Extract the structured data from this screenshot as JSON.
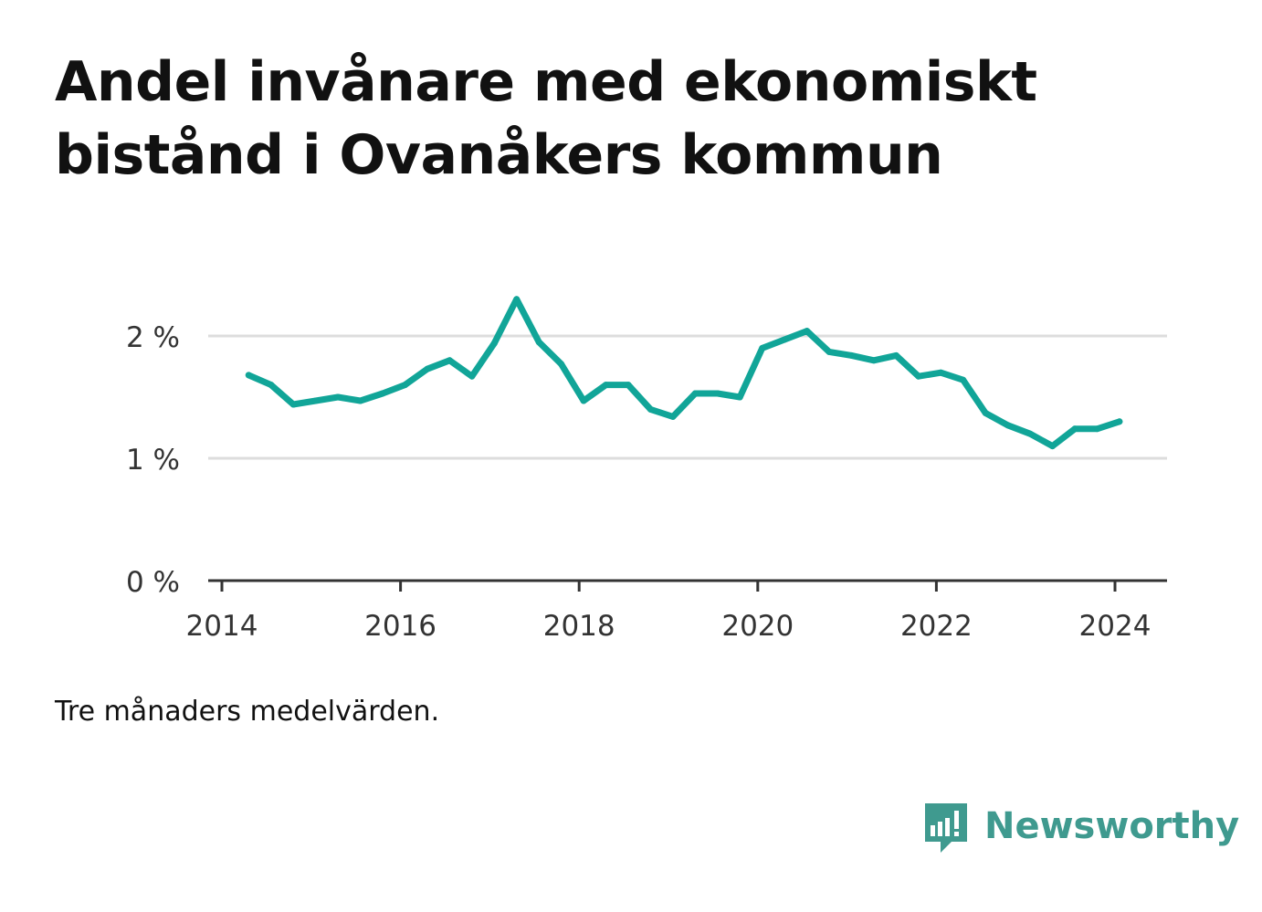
{
  "title": "Andel invånare med ekonomiskt bistånd i Ovanåkers kommun",
  "note": "Tre månaders medelvärden.",
  "brand": {
    "name": "Newsworthy",
    "color": "#3f9a8f",
    "icon": "bar-chart-logo-icon"
  },
  "chart_data": {
    "type": "line",
    "title": "Andel invånare med ekonomiskt bistånd i Ovanåkers kommun",
    "xlabel": "",
    "ylabel": "",
    "ylim": [
      0,
      2.5
    ],
    "xlim": [
      2014.0,
      2024.6
    ],
    "y_ticks": [
      {
        "value": 0,
        "label": "0 %"
      },
      {
        "value": 1,
        "label": "1 %"
      },
      {
        "value": 2,
        "label": "2 %"
      }
    ],
    "x_ticks": [
      {
        "value": 2014,
        "label": "2014"
      },
      {
        "value": 2016,
        "label": "2016"
      },
      {
        "value": 2018,
        "label": "2018"
      },
      {
        "value": 2020,
        "label": "2020"
      },
      {
        "value": 2022,
        "label": "2022"
      },
      {
        "value": 2024,
        "label": "2024"
      }
    ],
    "grid": true,
    "series": [
      {
        "color": "#11a598",
        "x": [
          2014.3,
          2014.55,
          2014.8,
          2015.05,
          2015.3,
          2015.55,
          2015.8,
          2016.05,
          2016.3,
          2016.55,
          2016.8,
          2017.05,
          2017.3,
          2017.55,
          2017.8,
          2018.05,
          2018.3,
          2018.55,
          2018.8,
          2019.05,
          2019.3,
          2019.55,
          2019.8,
          2020.05,
          2020.3,
          2020.55,
          2020.8,
          2021.05,
          2021.3,
          2021.55,
          2021.8,
          2022.05,
          2022.3,
          2022.55,
          2022.8,
          2023.05,
          2023.3,
          2023.55,
          2023.8,
          2024.05
        ],
        "values": [
          1.68,
          1.6,
          1.44,
          1.47,
          1.5,
          1.47,
          1.53,
          1.6,
          1.73,
          1.8,
          1.67,
          1.94,
          2.3,
          1.95,
          1.77,
          1.47,
          1.6,
          1.6,
          1.4,
          1.34,
          1.53,
          1.53,
          1.5,
          1.9,
          1.97,
          2.04,
          1.87,
          1.84,
          1.8,
          1.84,
          1.67,
          1.7,
          1.64,
          1.37,
          1.27,
          1.2,
          1.1,
          1.24,
          1.24,
          1.3
        ]
      }
    ]
  }
}
